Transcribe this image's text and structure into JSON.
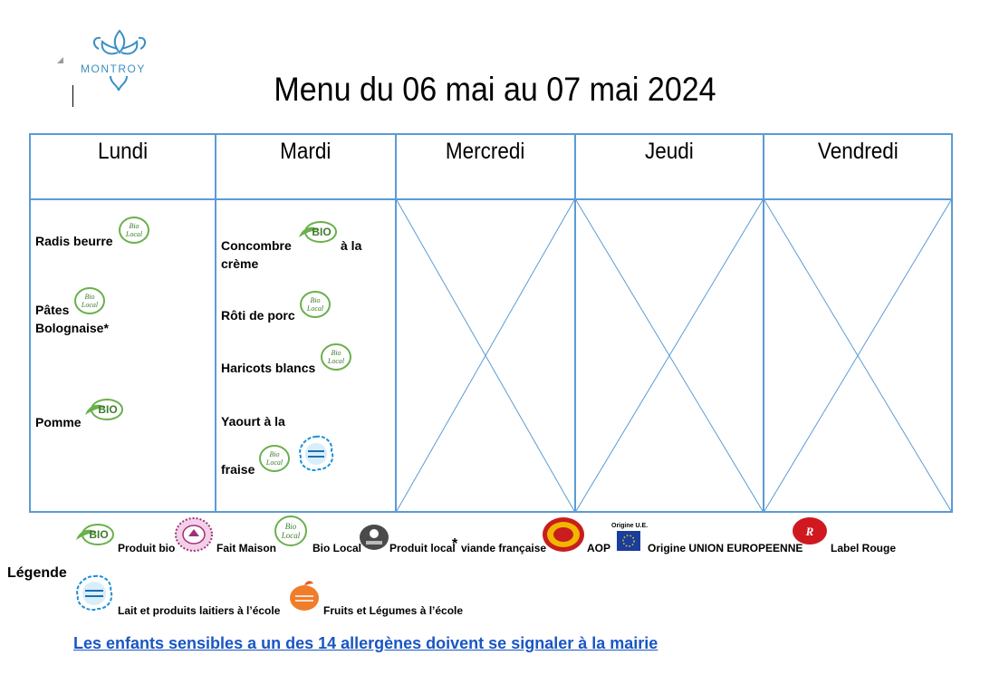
{
  "logo": {
    "text": "MONTROY",
    "color": "#3a8fc4"
  },
  "title": "Menu du 06 mai au 07 mai 2024",
  "days": [
    "Lundi",
    "Mardi",
    "Mercredi",
    "Jeudi",
    "Vendredi"
  ],
  "colors": {
    "grid": "#5b9bd5",
    "bio_green": "#6ab04c",
    "link": "#1a56c4"
  },
  "lundi": {
    "d1": "Radis beurre",
    "d2a": "Pâtes",
    "d2b": "Bolognaise*",
    "d3": "Pomme"
  },
  "mardi": {
    "d1a": "Concombre",
    "d1b": "à la",
    "d1c": "crème",
    "d2": "Rôti de porc",
    "d3": "Haricots blancs",
    "d4a": "Yaourt à la",
    "d4b": "fraise"
  },
  "badges": {
    "bio": "BIO",
    "bio_local_1": "Bio",
    "bio_local_2": "Local"
  },
  "legend": {
    "title": "Légende",
    "produit_bio": "Produit bio",
    "fait_maison": "Fait Maison",
    "bio_local": "Bio Local",
    "produit_local": "Produit local",
    "star": "*",
    "viande": "viande française",
    "aop": "AOP",
    "origine_ue_badge": "Origine U.E.",
    "origine_ue": "Origine UNION EUROPEENNE",
    "label_rouge": "Label Rouge",
    "lait": "Lait et produits laitiers à l’école",
    "fruits": "Fruits et Légumes à l’école"
  },
  "notice": "Les enfants sensibles a un des 14 allergènes doivent se signaler à la mairie",
  "icons": [
    "montroy-logo-icon",
    "bio-icon",
    "bio-local-icon",
    "fait-maison-icon",
    "produit-local-icon",
    "aop-icon",
    "eu-flag-icon",
    "label-rouge-icon",
    "lait-ecole-icon",
    "fruits-legumes-icon"
  ]
}
